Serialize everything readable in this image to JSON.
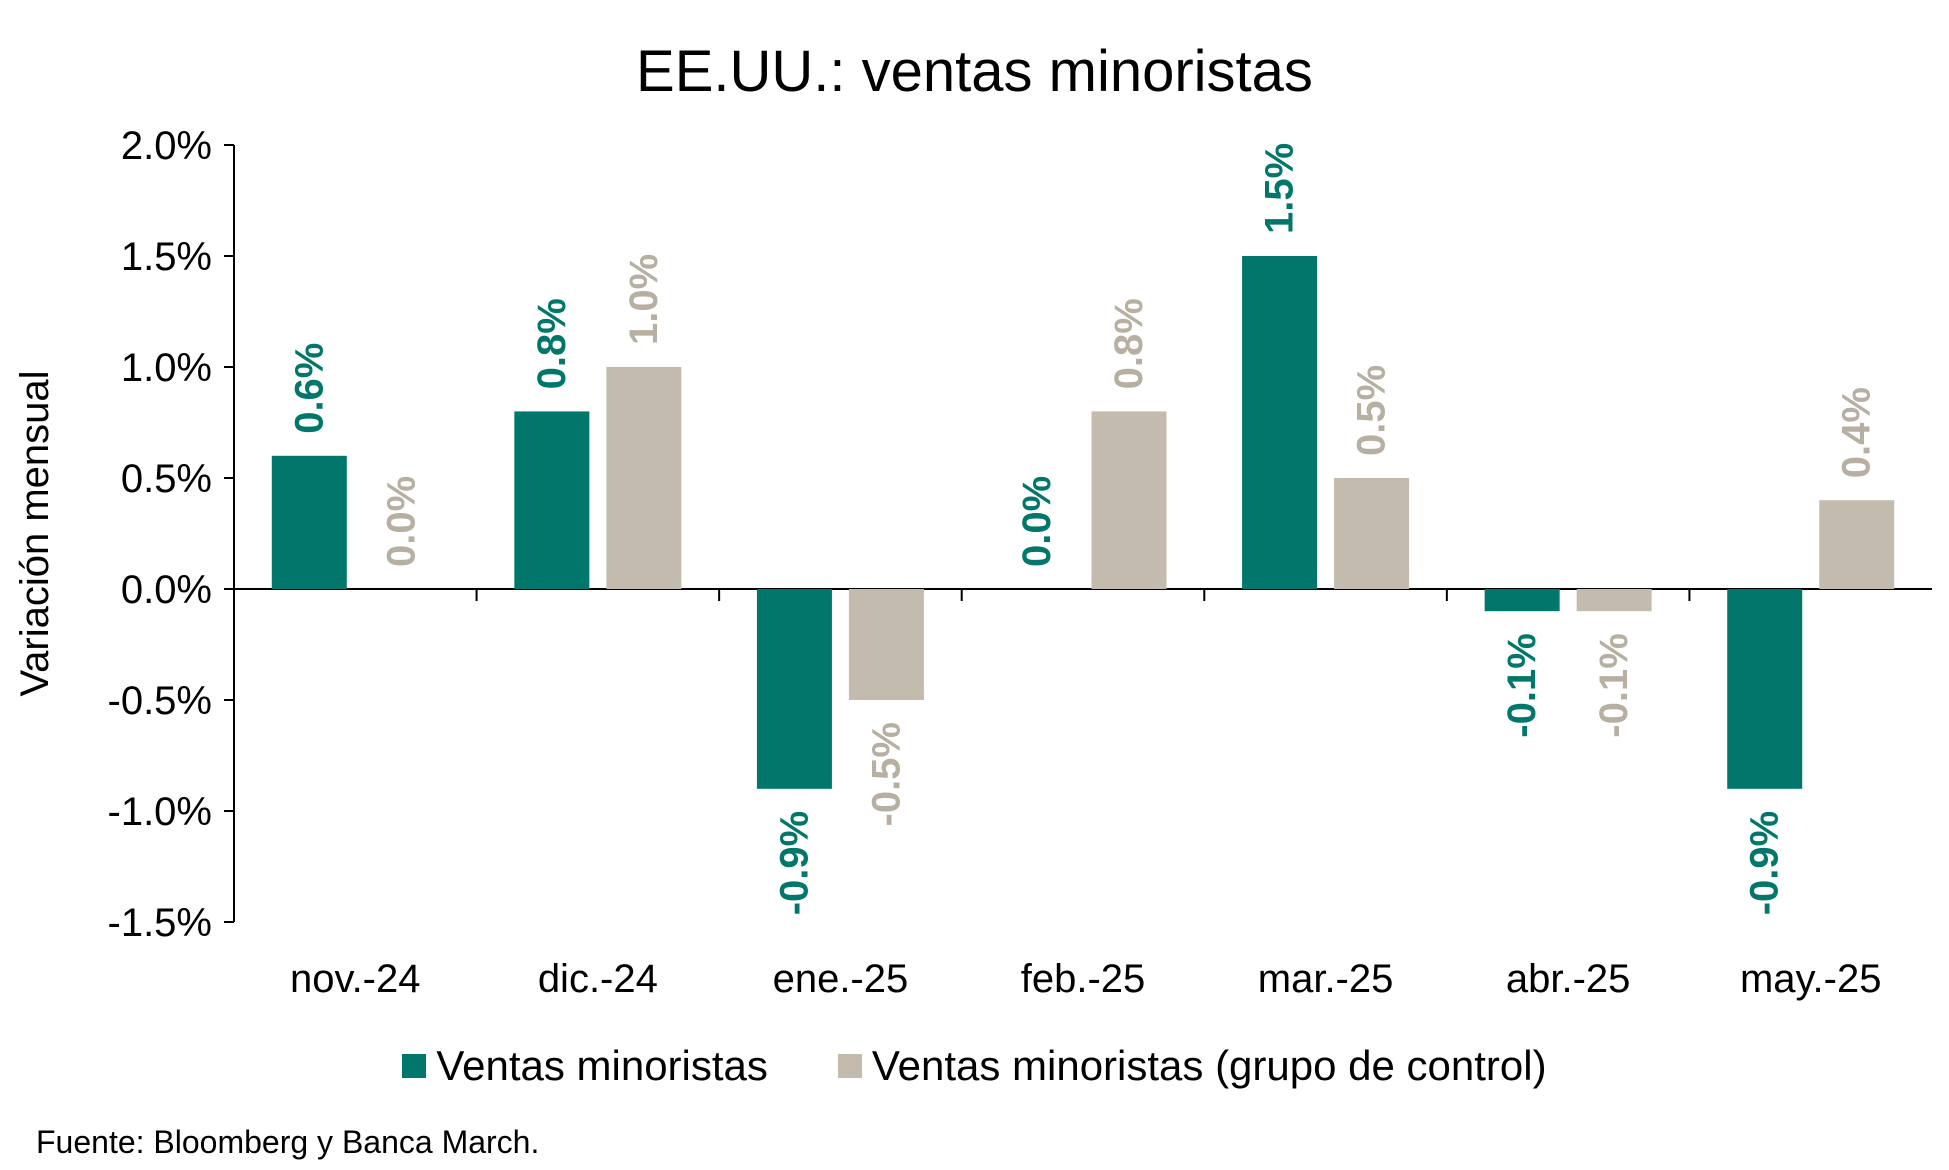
{
  "chart_data": {
    "type": "bar",
    "title": "EE.UU.: ventas minoristas",
    "xlabel": "",
    "ylabel": "Variación mensual",
    "categories": [
      "nov.-24",
      "dic.-24",
      "ene.-25",
      "feb.-25",
      "mar.-25",
      "abr.-25",
      "may.-25"
    ],
    "series": [
      {
        "name": "Ventas minoristas",
        "color": "#00776A",
        "values": [
          0.6,
          0.8,
          -0.9,
          0.0,
          1.5,
          -0.1,
          -0.9
        ],
        "labels": [
          "0.6%",
          "0.8%",
          "-0.9%",
          "0.0%",
          "1.5%",
          "-0.1%",
          "-0.9%"
        ]
      },
      {
        "name": "Ventas minoristas (grupo de control)",
        "color": "#C4BBAF",
        "values": [
          0.0,
          1.0,
          -0.5,
          0.8,
          0.5,
          -0.1,
          0.4
        ],
        "labels": [
          "0.0%",
          "1.0%",
          "-0.5%",
          "0.8%",
          "0.5%",
          "-0.1%",
          "0.4%"
        ]
      }
    ],
    "ylim": [
      -1.5,
      2.0
    ],
    "yticks": [
      2.0,
      1.5,
      1.0,
      0.5,
      0.0,
      -0.5,
      -1.0,
      -1.5
    ],
    "ytick_labels": [
      "2.0%",
      "1.5%",
      "1.0%",
      "0.5%",
      "0.0%",
      "-0.5%",
      "-1.0%",
      "-1.5%"
    ],
    "grid": false,
    "legend_position": "bottom"
  },
  "source_note": "Fuente: Bloomberg y Banca March."
}
